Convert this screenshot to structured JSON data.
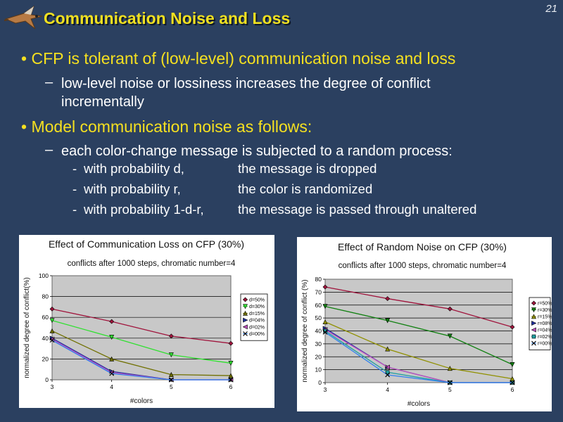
{
  "slide": {
    "page_number": "21",
    "title": "Communication Noise and Loss",
    "logo_icon": "kestrel-bird-icon",
    "bullets": [
      {
        "text": "CFP is tolerant of (low-level) communication noise and loss",
        "sub": [
          "low-level noise or lossiness increases the degree of conflict",
          "incrementally"
        ]
      },
      {
        "text": "Model communication noise as follows:",
        "sub": [
          "each color-change message is subjected to a random process:"
        ]
      }
    ],
    "process_rows": [
      {
        "dash": "-",
        "condition": "with probability d,",
        "outcome": "the message is dropped"
      },
      {
        "dash": "-",
        "condition": "with probability r,",
        "outcome": "the color is randomized"
      },
      {
        "dash": "-",
        "condition": "with probability 1-d-r,",
        "outcome": "the message is passed through unaltered"
      }
    ],
    "colors": {
      "background": "#2b4060",
      "title": "#f0e020",
      "bullet": "#f5e020",
      "text": "#ffffff",
      "plot_area": "#c8c8c8"
    }
  },
  "chart_data": [
    {
      "type": "line",
      "title": "Effect of Communication Loss on CFP (30%)",
      "subtitle": "conflicts after 1000 steps, chromatic number=4",
      "xlabel": "#colors",
      "ylabel": "normalized degree of conflict(%)",
      "x": [
        3,
        4,
        5,
        6
      ],
      "ylim": [
        0,
        100
      ],
      "yticks": [
        0,
        20,
        40,
        60,
        80,
        100
      ],
      "grid": true,
      "legend": "right",
      "series": [
        {
          "name": "d=50%",
          "values": [
            68,
            56,
            42,
            35
          ],
          "color": "#a0143c",
          "marker": "diamond"
        },
        {
          "name": "d=30%",
          "values": [
            57,
            41,
            24,
            16
          ],
          "color": "#30e030",
          "marker": "triangle-down"
        },
        {
          "name": "d=15%",
          "values": [
            47,
            20,
            5,
            4
          ],
          "color": "#707000",
          "marker": "triangle-up"
        },
        {
          "name": "d=04%",
          "values": [
            40,
            8,
            0,
            0
          ],
          "color": "#2030a0",
          "marker": "triangle-right"
        },
        {
          "name": "d=02%",
          "values": [
            39,
            7,
            0,
            0
          ],
          "color": "#c050c0",
          "marker": "triangle-left"
        },
        {
          "name": "d=00%",
          "values": [
            38,
            6,
            0,
            0
          ],
          "color": "#3080f0",
          "marker": "cross"
        }
      ]
    },
    {
      "type": "line",
      "title": "Effect of Random Noise on CFP (30%)",
      "subtitle": "conflicts after 1000 steps, chromatic number=4",
      "xlabel": "#colors",
      "ylabel": "normalized degree of conflict (%)",
      "x": [
        3,
        4,
        5,
        6
      ],
      "ylim": [
        0,
        80
      ],
      "yticks": [
        0,
        10,
        20,
        30,
        40,
        50,
        60,
        70,
        80
      ],
      "grid": true,
      "legend": "right",
      "series": [
        {
          "name": "r=50%",
          "values": [
            74,
            65,
            57,
            43
          ],
          "color": "#a0143c",
          "marker": "diamond"
        },
        {
          "name": "r=30%",
          "values": [
            59,
            48,
            36,
            14
          ],
          "color": "#108010",
          "marker": "triangle-down"
        },
        {
          "name": "r=15%",
          "values": [
            47,
            26,
            11,
            3
          ],
          "color": "#909000",
          "marker": "triangle-up"
        },
        {
          "name": "r=08%",
          "values": [
            42,
            12,
            0,
            0
          ],
          "color": "#2030a0",
          "marker": "triangle-right"
        },
        {
          "name": "r=04%",
          "values": [
            41,
            12,
            0,
            0
          ],
          "color": "#c050c0",
          "marker": "triangle-left"
        },
        {
          "name": "r=02%",
          "values": [
            40,
            8,
            0,
            0
          ],
          "color": "#20a0a0",
          "marker": "square"
        },
        {
          "name": "r=00%",
          "values": [
            39,
            6,
            0,
            0
          ],
          "color": "#3080f0",
          "marker": "cross"
        }
      ]
    }
  ]
}
